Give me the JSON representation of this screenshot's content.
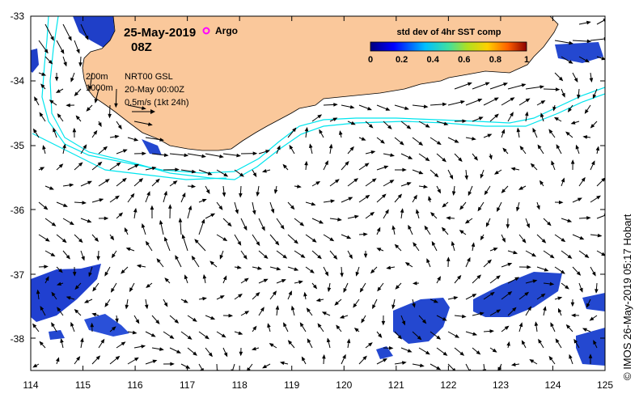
{
  "map": {
    "date": "25-May-2019",
    "time": "08Z",
    "argo_label": "Argo",
    "colorbar": {
      "title": "std dev of 4hr SST comp",
      "ticks": [
        "0",
        "0.2",
        "0.4",
        "0.6",
        "0.8",
        "1"
      ]
    },
    "legend": {
      "depth_200": "200m",
      "depth_1000": "1000m",
      "product": "NRT00 GSL",
      "ref_time": "20-May 00:00Z",
      "scale": "0.5m/s (1kt 24h)"
    },
    "x_ticks": [
      "114",
      "115",
      "116",
      "117",
      "118",
      "119",
      "120",
      "121",
      "122",
      "123",
      "124",
      "125"
    ],
    "y_ticks": [
      "-33",
      "-34",
      "-35",
      "-36",
      "-37",
      "-38"
    ],
    "credit": "© IMOS 26-May-2019 05:17 Hobart",
    "colors": {
      "land": "#fac89b",
      "isobath": "#00e5ee",
      "argo": "#ff00ff",
      "arrow": "#000000"
    }
  }
}
